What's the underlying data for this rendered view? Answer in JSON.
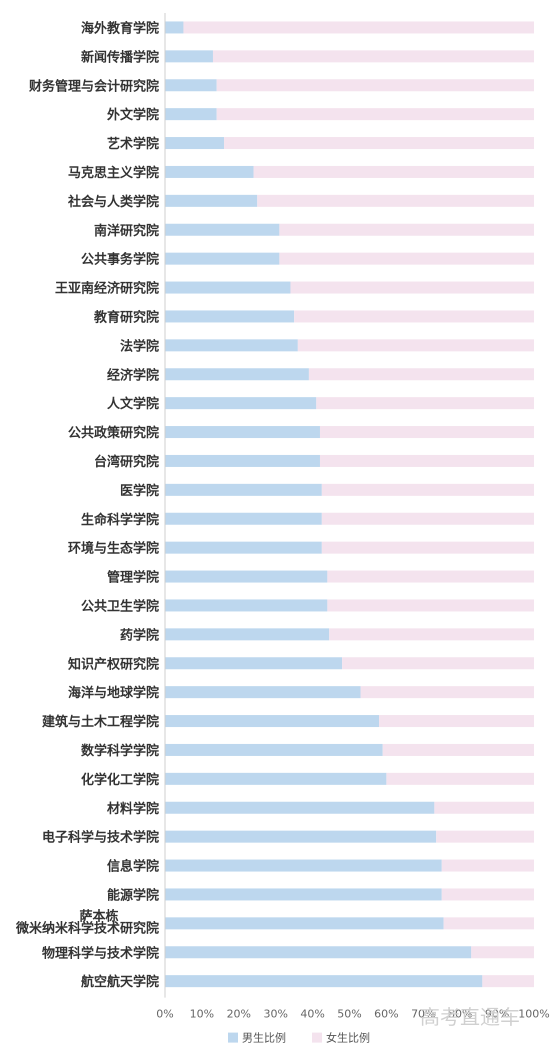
{
  "chart_data": {
    "type": "bar",
    "orientation": "horizontal",
    "stacked": true,
    "categories": [
      "海外教育学院",
      "新闻传播学院",
      "财务管理与会计研究院",
      "外文学院",
      "艺术学院",
      "马克思主义学院",
      "社会与人类学院",
      "南洋研究院",
      "公共事务学院",
      "王亚南经济研究院",
      "教育研究院",
      "法学院",
      "经济学院",
      "人文学院",
      "公共政策研究院",
      "台湾研究院",
      "医学院",
      "生命科学学院",
      "环境与生态学院",
      "管理学院",
      "公共卫生学院",
      "药学院",
      "知识产权研究院",
      "海洋与地球学院",
      "建筑与土木工程学院",
      "数学科学学院",
      "化学化工学院",
      "材料学院",
      "电子科学与技术学院",
      "信息学院",
      "能源学院",
      "萨本栋微米纳米科学技术研究院",
      "物理科学与技术学院",
      "航空航天学院"
    ],
    "series": [
      {
        "name": "男生比例",
        "color": "#bdd7ee",
        "values": [
          5,
          13,
          14,
          14,
          16,
          24,
          25,
          31,
          31,
          34,
          35,
          36,
          39,
          41,
          42,
          42,
          42.5,
          42.5,
          42.5,
          44,
          44,
          44.5,
          48,
          53,
          58,
          59,
          60,
          73,
          73.5,
          75,
          75,
          75.5,
          83,
          86
        ]
      },
      {
        "name": "女生比例",
        "color": "#f4e3ee",
        "values": [
          95,
          87,
          86,
          86,
          84,
          76,
          75,
          69,
          69,
          66,
          65,
          64,
          61,
          59,
          58,
          58,
          57.5,
          57.5,
          57.5,
          56,
          56,
          55.5,
          52,
          47,
          42,
          41,
          40,
          27,
          26.5,
          25,
          25,
          24.5,
          17,
          14
        ]
      }
    ],
    "xlim": [
      0,
      100
    ],
    "xticks": [
      "0%",
      "10%",
      "20%",
      "30%",
      "40%",
      "50%",
      "60%",
      "70%",
      "80%",
      "90%",
      "100%"
    ],
    "legend_position": "bottom",
    "grid": false
  },
  "watermark": "高考直通车"
}
